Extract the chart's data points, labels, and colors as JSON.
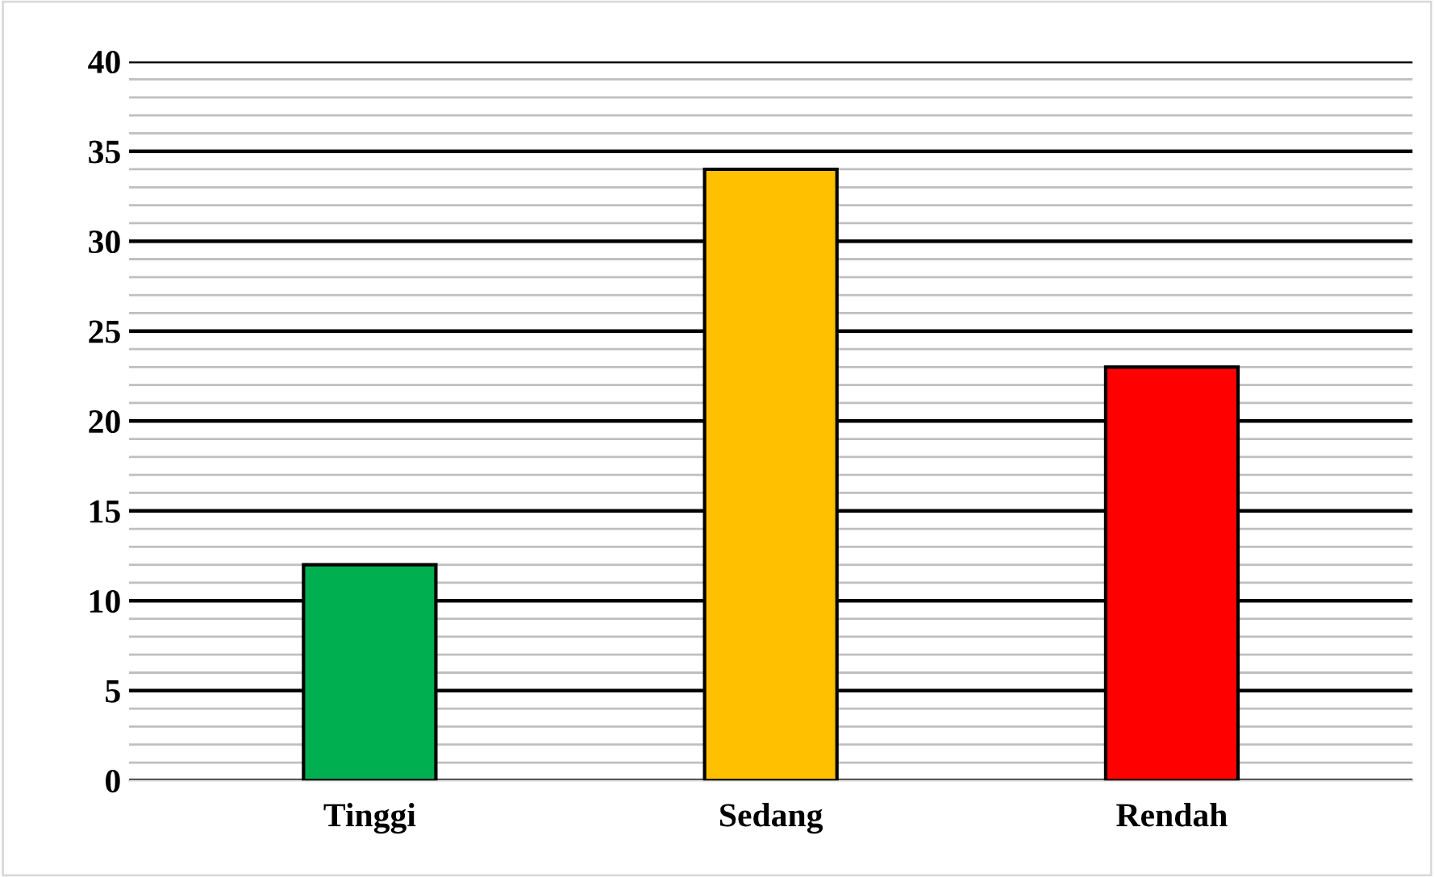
{
  "chart_data": {
    "type": "bar",
    "categories": [
      "Tinggi",
      "Sedang",
      "Rendah"
    ],
    "values": [
      12,
      34,
      23
    ],
    "colors": [
      "#00b050",
      "#ffc000",
      "#ff0000"
    ],
    "ylim": [
      0,
      40
    ],
    "yticks": [
      0,
      {
        "value": 1,
        "label": null
      },
      {
        "value": 2,
        "label": null
      },
      {
        "value": 3,
        "label": null
      },
      {
        "value": 4,
        "label": null
      },
      5,
      {
        "value": 6,
        "label": null
      },
      {
        "value": 7,
        "label": null
      },
      {
        "value": 8,
        "label": null
      },
      {
        "value": 9,
        "label": null
      },
      10,
      {
        "value": 11,
        "label": null
      },
      {
        "value": 12,
        "label": null
      },
      {
        "value": 13,
        "label": null
      },
      {
        "value": 14,
        "label": null
      },
      15,
      {
        "value": 16,
        "label": null
      },
      {
        "value": 17,
        "label": null
      },
      {
        "value": 18,
        "label": null
      },
      {
        "value": 19,
        "label": null
      },
      20,
      {
        "value": 21,
        "label": null
      },
      {
        "value": 22,
        "label": null
      },
      {
        "value": 23,
        "label": null
      },
      {
        "value": 24,
        "label": null
      },
      25,
      {
        "value": 26,
        "label": null
      },
      {
        "value": 27,
        "label": null
      },
      {
        "value": 28,
        "label": null
      },
      {
        "value": 29,
        "label": null
      },
      30,
      {
        "value": 31,
        "label": null
      },
      {
        "value": 32,
        "label": null
      },
      {
        "value": 33,
        "label": null
      },
      {
        "value": 34,
        "label": null
      },
      35,
      {
        "value": 36,
        "label": null
      },
      {
        "value": 37,
        "label": null
      },
      {
        "value": 38,
        "label": null
      },
      {
        "value": 39,
        "label": null
      },
      40
    ],
    "grid": "y",
    "legend": false
  }
}
